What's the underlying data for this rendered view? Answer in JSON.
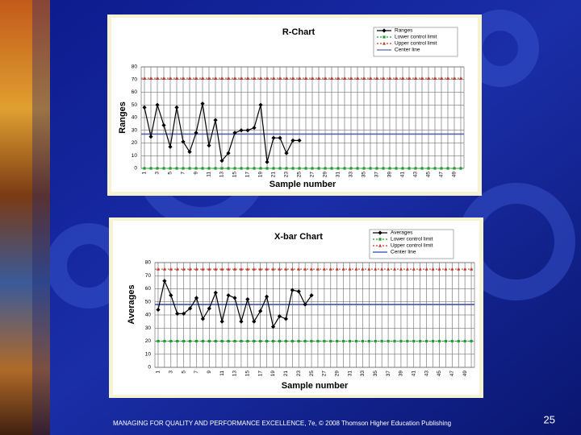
{
  "slide": {
    "footer": "MANAGING FOR QUALITY AND PERFORMANCE EXCELLENCE, 7e, © 2008 Thomson Higher Education Publishing",
    "page_number": "25"
  },
  "chart_data": [
    {
      "type": "line",
      "title": "R-Chart",
      "x_label": "Sample number",
      "y_label": "Ranges",
      "categories": [
        "1",
        null,
        "3",
        null,
        "5",
        null,
        "7",
        null,
        "9",
        null,
        "11",
        null,
        "13",
        null,
        "15",
        null,
        "17",
        null,
        "19",
        null,
        "21",
        null,
        "23",
        null,
        "25",
        null,
        "27",
        null,
        "29",
        null,
        "31",
        null,
        "33",
        null,
        "35",
        null,
        "37",
        null,
        "39",
        null,
        "41",
        null,
        "43",
        null,
        "45",
        null,
        "47",
        null,
        "49",
        null
      ],
      "series": [
        {
          "name": "Ranges",
          "color": "#000000",
          "values": [
            48,
            25,
            50,
            34,
            17,
            48,
            21,
            13,
            28,
            51,
            18,
            38,
            6,
            12,
            28,
            30,
            30,
            32,
            50,
            5,
            24,
            24,
            12,
            22,
            22,
            null,
            null,
            null,
            null,
            null,
            null,
            null,
            null,
            null,
            null,
            null,
            null,
            null,
            null,
            null,
            null,
            null,
            null,
            null,
            null,
            null,
            null,
            null,
            null,
            null
          ]
        }
      ],
      "limits": [
        {
          "name": "Lower control limit",
          "color": "#1e9e2e",
          "value": 0,
          "marker": "square"
        },
        {
          "name": "Upper control limit",
          "color": "#c0392b",
          "value": 71,
          "marker": "triangle"
        },
        {
          "name": "Center line",
          "color": "#5566aa",
          "value": 27,
          "marker": null
        }
      ],
      "ylim": [
        0,
        80
      ],
      "yticks": [
        0,
        10,
        20,
        30,
        40,
        50,
        60,
        70,
        80
      ],
      "grid": true
    },
    {
      "type": "line",
      "title": "X-bar Chart",
      "x_label": "Sample number",
      "y_label": "Averages",
      "categories": [
        "1",
        null,
        "3",
        null,
        "5",
        null,
        "7",
        null,
        "9",
        null,
        "11",
        null,
        "13",
        null,
        "15",
        null,
        "17",
        null,
        "19",
        null,
        "21",
        null,
        "23",
        null,
        "25",
        null,
        "27",
        null,
        "29",
        null,
        "31",
        null,
        "33",
        null,
        "35",
        null,
        "37",
        null,
        "39",
        null,
        "41",
        null,
        "43",
        null,
        "45",
        null,
        "47",
        null,
        "49",
        null
      ],
      "series": [
        {
          "name": "Averages",
          "color": "#000000",
          "values": [
            44,
            66,
            55,
            41,
            41,
            45,
            53,
            37,
            45,
            57,
            35,
            55,
            53,
            35,
            52,
            35,
            43,
            54,
            31,
            39,
            37,
            59,
            58,
            48,
            55,
            null,
            null,
            null,
            null,
            null,
            null,
            null,
            null,
            null,
            null,
            null,
            null,
            null,
            null,
            null,
            null,
            null,
            null,
            null,
            null,
            null,
            null,
            null,
            null,
            null
          ]
        }
      ],
      "limits": [
        {
          "name": "Lower control limit",
          "color": "#1e9e2e",
          "value": 20,
          "marker": "square"
        },
        {
          "name": "Upper control limit",
          "color": "#c0392b",
          "value": 75,
          "marker": "triangle"
        },
        {
          "name": "Center line",
          "color": "#3344aa",
          "value": 48,
          "marker": null
        }
      ],
      "ylim": [
        0,
        80
      ],
      "yticks": [
        0,
        10,
        20,
        30,
        40,
        50,
        60,
        70,
        80
      ],
      "grid": true
    }
  ]
}
